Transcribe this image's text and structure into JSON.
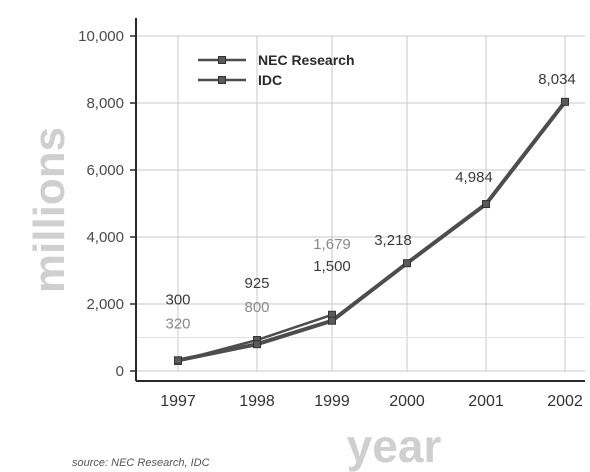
{
  "chart_data": {
    "type": "line",
    "x": [
      "1997",
      "1998",
      "1999",
      "2000",
      "2001",
      "2002"
    ],
    "series": [
      {
        "name": "NEC Research",
        "values": [
          300,
          925,
          1679,
          null,
          null,
          null
        ]
      },
      {
        "name": "IDC",
        "values": [
          320,
          800,
          1500,
          3218,
          4984,
          8034
        ]
      }
    ],
    "point_labels": [
      {
        "x": "1997",
        "text": "300",
        "emphasis": "dark"
      },
      {
        "x": "1997",
        "text": "320",
        "emphasis": "light"
      },
      {
        "x": "1998",
        "text": "925",
        "emphasis": "dark"
      },
      {
        "x": "1998",
        "text": "800",
        "emphasis": "light"
      },
      {
        "x": "1999",
        "text": "1,679",
        "emphasis": "light"
      },
      {
        "x": "1999",
        "text": "1,500",
        "emphasis": "dark"
      },
      {
        "x": "2000",
        "text": "3,218",
        "emphasis": "dark"
      },
      {
        "x": "2001",
        "text": "4,984",
        "emphasis": "dark"
      },
      {
        "x": "2002",
        "text": "8,034",
        "emphasis": "dark"
      }
    ],
    "yticks": [
      {
        "value": 0,
        "label": "0"
      },
      {
        "value": 2000,
        "label": "2,000"
      },
      {
        "value": 4000,
        "label": "4,000"
      },
      {
        "value": 6000,
        "label": "6,000"
      },
      {
        "value": 8000,
        "label": "8,000"
      },
      {
        "value": 10000,
        "label": "10,000"
      }
    ],
    "ylim": [
      0,
      10000
    ],
    "ylabel": "millions",
    "xlabel": "year",
    "legend_position": "top-left",
    "grid": true
  },
  "source": "source: NEC Research, IDC",
  "colors": {
    "line": "#4d4d4d",
    "marker": "#5a5a5a",
    "grid": "#c8c8c8",
    "axis_title": "#cfcfcf"
  }
}
